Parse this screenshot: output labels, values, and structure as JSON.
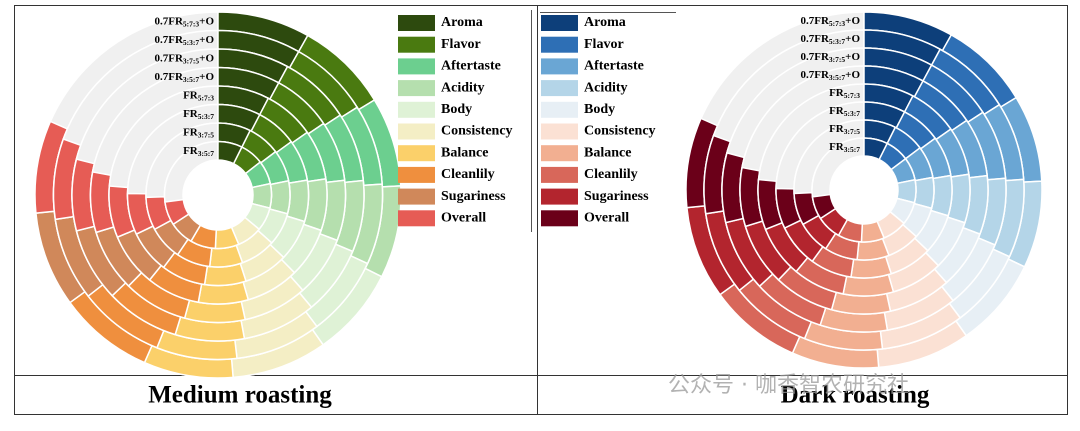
{
  "chart_data": [
    {
      "type": "radial_bar",
      "title": "Medium roasting",
      "ylim": [
        0,
        95
      ],
      "categories": [
        {
          "prefix": "0.7FR",
          "sub": "5:7:3",
          "suffix": "+O"
        },
        {
          "prefix": "0.7FR",
          "sub": "5:3:7",
          "suffix": "+O"
        },
        {
          "prefix": "0.7FR",
          "sub": "3:7:5",
          "suffix": "+O"
        },
        {
          "prefix": "0.7FR",
          "sub": "3:5:7",
          "suffix": "+O"
        },
        {
          "prefix": "FR",
          "sub": "5:7:3"
        },
        {
          "prefix": "FR",
          "sub": "5:3:7"
        },
        {
          "prefix": "FR",
          "sub": "3:7:5"
        },
        {
          "prefix": "FR",
          "sub": "3:5:7"
        }
      ],
      "series": [
        {
          "name": "Aroma",
          "color": "#2d4a0e",
          "values": [
            7.75,
            7.75,
            7.5,
            7.5,
            7.25,
            7.25,
            7.0,
            7.0
          ]
        },
        {
          "name": "Flavor",
          "color": "#4a7a10",
          "values": [
            7.75,
            7.5,
            7.5,
            7.25,
            7.25,
            7.0,
            7.0,
            6.75
          ]
        },
        {
          "name": "Aftertaste",
          "color": "#6ccf8f",
          "values": [
            7.5,
            7.5,
            7.25,
            7.25,
            7.0,
            7.0,
            6.75,
            6.75
          ]
        },
        {
          "name": "Acidity",
          "color": "#b5dfae",
          "values": [
            7.75,
            7.5,
            7.5,
            7.25,
            7.25,
            7.0,
            7.0,
            7.0
          ]
        },
        {
          "name": "Body",
          "color": "#dff2d6",
          "values": [
            7.5,
            7.5,
            7.25,
            7.25,
            7.0,
            7.0,
            7.0,
            6.75
          ]
        },
        {
          "name": "Consistency",
          "color": "#f4eec5",
          "values": [
            8.0,
            8.0,
            7.75,
            7.75,
            7.5,
            7.5,
            7.5,
            7.25
          ]
        },
        {
          "name": "Balance",
          "color": "#fbd06a",
          "values": [
            7.5,
            7.5,
            7.25,
            7.25,
            7.0,
            7.0,
            7.0,
            6.75
          ]
        },
        {
          "name": "Cleanlily",
          "color": "#ef8f3e",
          "values": [
            8.0,
            8.0,
            7.75,
            7.75,
            7.5,
            7.5,
            7.25,
            7.25
          ]
        },
        {
          "name": "Sugariness",
          "color": "#d0885a",
          "values": [
            8.0,
            7.75,
            7.75,
            7.5,
            7.5,
            7.25,
            7.25,
            7.0
          ]
        },
        {
          "name": "Overall",
          "color": "#e65c55",
          "values": [
            7.75,
            7.5,
            7.5,
            7.25,
            7.25,
            7.0,
            7.0,
            6.75
          ]
        }
      ]
    },
    {
      "type": "radial_bar",
      "title": "Dark roasting",
      "ylim": [
        0,
        95
      ],
      "categories": [
        {
          "prefix": "0.7FR",
          "sub": "5:7:3",
          "suffix": "+O"
        },
        {
          "prefix": "0.7FR",
          "sub": "5:3:7",
          "suffix": "+O"
        },
        {
          "prefix": "0.7FR",
          "sub": "3:7:5",
          "suffix": "+O"
        },
        {
          "prefix": "0.7FR",
          "sub": "3:5:7",
          "suffix": "+O"
        },
        {
          "prefix": "FR",
          "sub": "5:7:3"
        },
        {
          "prefix": "FR",
          "sub": "5:3:7"
        },
        {
          "prefix": "FR",
          "sub": "3:7:5"
        },
        {
          "prefix": "FR",
          "sub": "3:5:7"
        }
      ],
      "series": [
        {
          "name": "Aroma",
          "color": "#0d3f7a",
          "values": [
            7.75,
            7.5,
            7.5,
            7.5,
            7.25,
            7.25,
            7.0,
            7.0
          ]
        },
        {
          "name": "Flavor",
          "color": "#2e6fb5",
          "values": [
            7.75,
            7.75,
            7.5,
            7.25,
            7.25,
            7.0,
            7.0,
            7.0
          ]
        },
        {
          "name": "Aftertaste",
          "color": "#6aa6d4",
          "values": [
            7.5,
            7.5,
            7.5,
            7.25,
            7.0,
            7.0,
            7.0,
            6.75
          ]
        },
        {
          "name": "Acidity",
          "color": "#b4d5e8",
          "values": [
            7.5,
            7.5,
            7.25,
            7.25,
            7.0,
            7.0,
            6.75,
            6.75
          ]
        },
        {
          "name": "Body",
          "color": "#e7eff5",
          "values": [
            7.75,
            7.5,
            7.5,
            7.25,
            7.25,
            7.0,
            7.0,
            6.75
          ]
        },
        {
          "name": "Consistency",
          "color": "#fbe1d4",
          "values": [
            8.0,
            8.0,
            7.75,
            7.75,
            7.5,
            7.5,
            7.25,
            7.25
          ]
        },
        {
          "name": "Balance",
          "color": "#f2af91",
          "values": [
            7.5,
            7.5,
            7.25,
            7.25,
            7.25,
            7.0,
            7.0,
            6.75
          ]
        },
        {
          "name": "Cleanlily",
          "color": "#d8675a",
          "values": [
            8.0,
            7.75,
            7.75,
            7.5,
            7.5,
            7.25,
            7.25,
            7.0
          ]
        },
        {
          "name": "Sugariness",
          "color": "#b3252e",
          "values": [
            8.0,
            8.0,
            7.75,
            7.75,
            7.5,
            7.5,
            7.25,
            7.25
          ]
        },
        {
          "name": "Overall",
          "color": "#6b0019",
          "values": [
            7.75,
            7.5,
            7.5,
            7.25,
            7.25,
            7.0,
            7.0,
            6.75
          ]
        }
      ]
    }
  ],
  "watermark": "公众号 · 咖香智农研究社"
}
